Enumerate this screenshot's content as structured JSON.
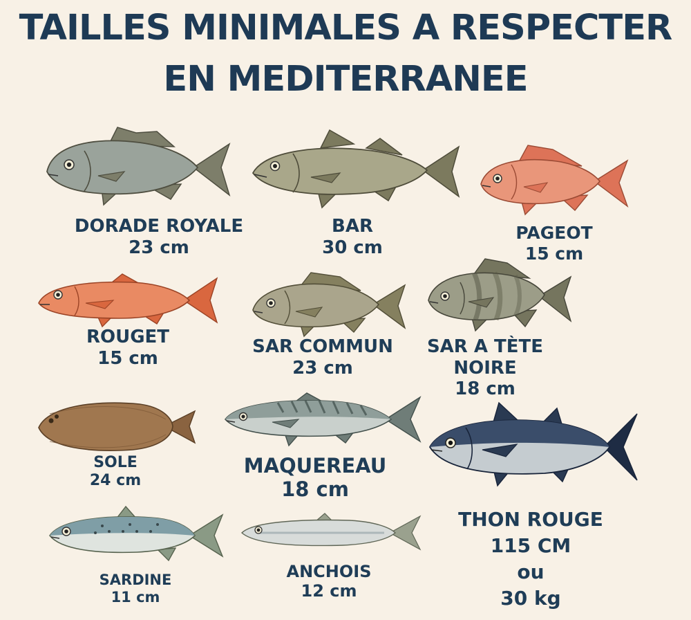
{
  "title": {
    "line1": "TAILLES MINIMALES A RESPECTER",
    "line2": "EN MEDITERRANEE"
  },
  "fishes": [
    {
      "id": "dorade-royale",
      "name": "DORADE ROYALE",
      "size": "23 cm",
      "icon": "sea-bream-icon",
      "body_color": "#9aa39b",
      "fin_color": "#7d7e6a"
    },
    {
      "id": "bar",
      "name": "BAR",
      "size": "30 cm",
      "icon": "sea-bass-icon",
      "body_color": "#a9a78a",
      "fin_color": "#7c7a5e"
    },
    {
      "id": "pageot",
      "name": "PAGEOT",
      "size": "15 cm",
      "icon": "pandora-icon",
      "body_color": "#e9967a",
      "fin_color": "#dd7358"
    },
    {
      "id": "rouget",
      "name": "ROUGET",
      "size": "15 cm",
      "icon": "red-mullet-icon",
      "body_color": "#e98a63",
      "fin_color": "#d9673f"
    },
    {
      "id": "sar-commun",
      "name": "SAR COMMUN",
      "size": "23 cm",
      "icon": "white-seabream-icon",
      "body_color": "#aaa58c",
      "fin_color": "#85805f"
    },
    {
      "id": "sar-tete-noire",
      "name_line1": "SAR A TÈTE",
      "name_line2": "NOIRE",
      "size": "18 cm",
      "icon": "two-banded-seabream-icon",
      "body_color": "#9c9d88",
      "fin_color": "#75755e"
    },
    {
      "id": "sole",
      "name": "SOLE",
      "size": "24 cm",
      "icon": "sole-icon",
      "body_color": "#a0774f",
      "fin_color": "#8a6340"
    },
    {
      "id": "maquereau",
      "name": "MAQUEREAU",
      "size": "18 cm",
      "icon": "mackerel-icon",
      "body_color": "#8f9e9a",
      "fin_color": "#6f7d78"
    },
    {
      "id": "thon-rouge",
      "name": "THON ROUGE",
      "size": "115 CM",
      "or": "ou",
      "weight": "30 kg",
      "icon": "bluefin-tuna-icon",
      "body_color": "#3a4d6a",
      "fin_color": "#2a3a52"
    },
    {
      "id": "sardine",
      "name": "SARDINE",
      "size": "11 cm",
      "icon": "sardine-icon",
      "body_color": "#9fb3b7",
      "fin_color": "#8a9a85"
    },
    {
      "id": "anchois",
      "name": "ANCHOIS",
      "size": "12 cm",
      "icon": "anchovy-icon",
      "body_color": "#b8bfbd",
      "fin_color": "#9aa18e"
    }
  ]
}
